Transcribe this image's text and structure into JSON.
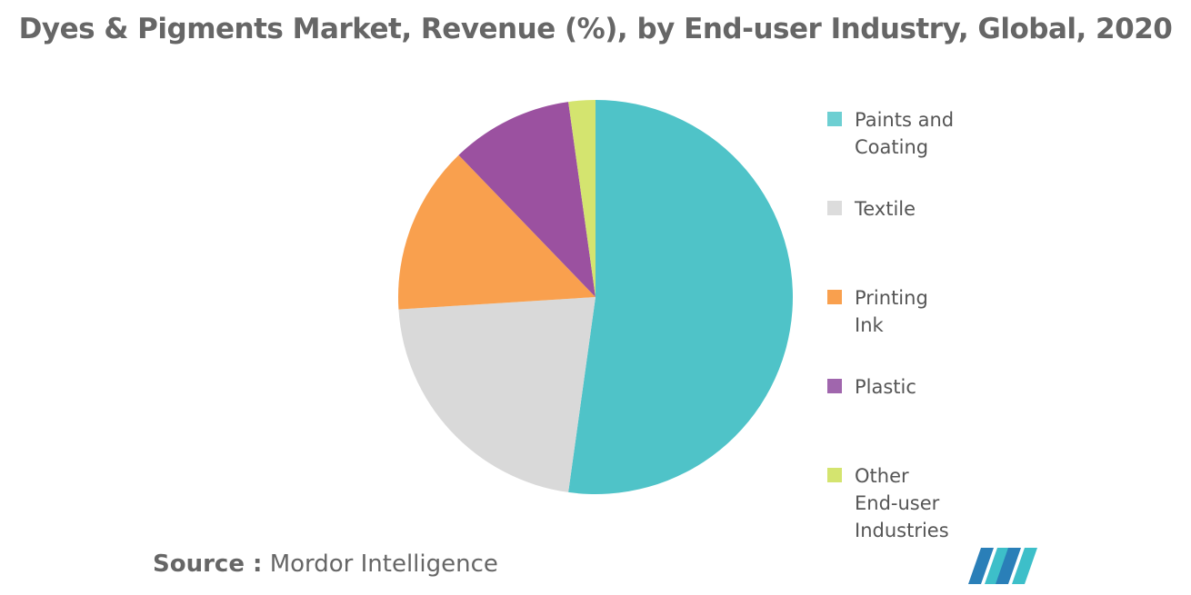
{
  "title": "Dyes & Pigments Market, Revenue (%), by End-user Industry, Global, 2020",
  "chart_data": {
    "type": "pie",
    "title": "Dyes & Pigments Market, Revenue (%), by End-user Industry, Global, 2020",
    "start_angle_deg": 0,
    "direction": "clockwise",
    "slices": [
      {
        "label": "Paints and Coating",
        "value": 52.2,
        "color": "#4fc3c8"
      },
      {
        "label": "Textile",
        "value": 21.8,
        "color": "#d9d9d9"
      },
      {
        "label": "Printing Ink",
        "value": 13.8,
        "color": "#f9a04e"
      },
      {
        "label": "Plastic",
        "value": 10.0,
        "color": "#9b51a0"
      },
      {
        "label": "Other End-user Industries",
        "value": 2.2,
        "color": "#d4e46f"
      }
    ],
    "legend_position": "right"
  },
  "legend": {
    "items": [
      {
        "label": "Paints and\nCoating",
        "color": "#6dcfd2"
      },
      {
        "label": "Textile",
        "color": "#dcdcdc"
      },
      {
        "label": "Printing\nInk",
        "color": "#f9a04e"
      },
      {
        "label": "Plastic",
        "color": "#a066ad"
      },
      {
        "label": "Other\nEnd-user\nIndustries",
        "color": "#d4e46f"
      }
    ]
  },
  "source": {
    "prefix": "Source :",
    "text": "Mordor Intelligence"
  },
  "logo": {
    "icon": "mordor-intelligence-logo",
    "colors": [
      "#2a7fb8",
      "#3dbfc9"
    ]
  }
}
